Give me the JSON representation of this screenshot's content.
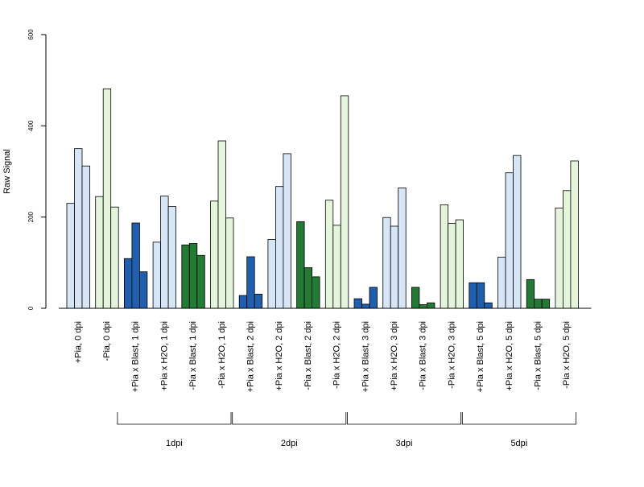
{
  "chart_data": {
    "type": "bar",
    "ylabel": "Raw Signal",
    "xlabel": "",
    "ylim": [
      0,
      600
    ],
    "yticks": [
      0,
      200,
      400,
      600
    ],
    "grid": false,
    "colors": {
      "light_blue": "#d6e6f7",
      "light_green": "#e4f5dc",
      "dark_blue": "#1f5fad",
      "dark_green": "#237a35",
      "axis": "#000000"
    },
    "groups": [
      {
        "label": "+Pia, 0 dpi",
        "color": "#d6e6f7",
        "values": [
          230,
          350,
          312
        ]
      },
      {
        "label": "-Pia, 0 dpi",
        "color": "#e4f5dc",
        "values": [
          245,
          481,
          222
        ]
      },
      {
        "label": "+Pia x Blast, 1 dpi",
        "color": "#1f5fad",
        "values": [
          109,
          187,
          80
        ]
      },
      {
        "label": "+Pia x H2O, 1 dpi",
        "color": "#d6e6f7",
        "values": [
          145,
          246,
          223
        ]
      },
      {
        "label": "-Pia x Blast, 1 dpi",
        "color": "#237a35",
        "values": [
          139,
          142,
          116
        ]
      },
      {
        "label": "-Pia x H2O, 1 dpi",
        "color": "#e4f5dc",
        "values": [
          235,
          367,
          198
        ]
      },
      {
        "label": "+Pia x Blast, 2 dpi",
        "color": "#1f5fad",
        "values": [
          28,
          113,
          31
        ]
      },
      {
        "label": "+Pia x H2O, 2 dpi",
        "color": "#d6e6f7",
        "values": [
          151,
          267,
          339
        ]
      },
      {
        "label": "-Pia x Blast, 2 dpi",
        "color": "#237a35",
        "values": [
          190,
          89,
          69
        ]
      },
      {
        "label": "-Pia x H2O, 2 dpi",
        "color": "#e4f5dc",
        "values": [
          237,
          182,
          466
        ]
      },
      {
        "label": "+Pia x Blast, 3 dpi",
        "color": "#1f5fad",
        "values": [
          21,
          9,
          46
        ]
      },
      {
        "label": "+Pia x H2O, 3 dpi",
        "color": "#d6e6f7",
        "values": [
          199,
          180,
          264
        ]
      },
      {
        "label": "-Pia x Blast, 3 dpi",
        "color": "#237a35",
        "values": [
          46,
          8,
          12
        ]
      },
      {
        "label": "-Pia x H2O, 3 dpi",
        "color": "#e4f5dc",
        "values": [
          227,
          186,
          194
        ]
      },
      {
        "label": "+Pia x Blast, 5 dpi",
        "color": "#1f5fad",
        "values": [
          56,
          56,
          12
        ]
      },
      {
        "label": "+Pia x H2O, 5 dpi",
        "color": "#d6e6f7",
        "values": [
          112,
          297,
          335
        ]
      },
      {
        "label": "-Pia x Blast, 5 dpi",
        "color": "#237a35",
        "values": [
          63,
          20,
          20
        ]
      },
      {
        "label": "-Pia x H2O, 5 dpi",
        "color": "#e4f5dc",
        "values": [
          220,
          258,
          323
        ]
      }
    ],
    "time_brackets": [
      {
        "label": "1dpi",
        "from_group": 2,
        "to_group": 5
      },
      {
        "label": "2dpi",
        "from_group": 6,
        "to_group": 9
      },
      {
        "label": "3dpi",
        "from_group": 10,
        "to_group": 13
      },
      {
        "label": "5dpi",
        "from_group": 14,
        "to_group": 17
      }
    ]
  }
}
